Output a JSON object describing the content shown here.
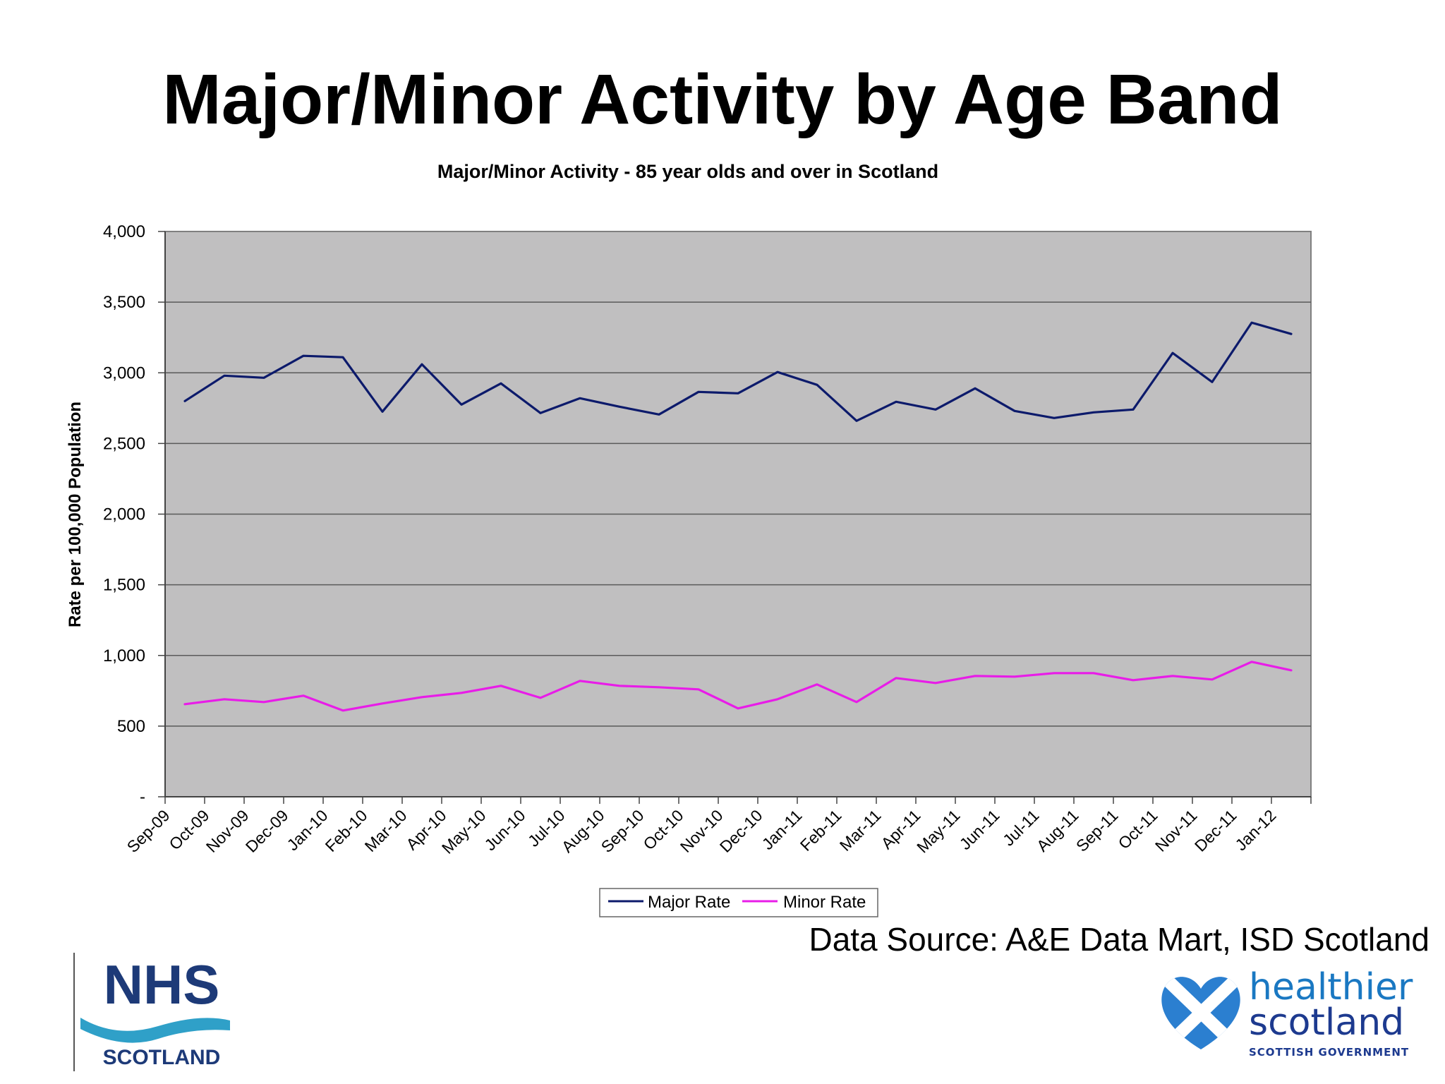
{
  "page": {
    "title": "Major/Minor Activity by Age Band",
    "data_source": "Data Source:  A&E Data Mart, ISD Scotland"
  },
  "logos": {
    "nhs": {
      "line1": "NHS",
      "line2": "SCOTLAND"
    },
    "healthier": {
      "line1": "healthier",
      "line2": "scotland",
      "line3": "SCOTTISH GOVERNMENT"
    }
  },
  "colors": {
    "plot_bg": "#c0bfc0",
    "major": "#0c1a6b",
    "minor": "#e81ce8",
    "grid": "#5a5a5a"
  },
  "chart_data": {
    "type": "line",
    "title": "Major/Minor Activity - 85 year olds and over in Scotland",
    "xlabel": "",
    "ylabel": "Rate per 100,000 Population",
    "ylim": [
      0,
      4000
    ],
    "yticks": [
      0,
      500,
      1000,
      1500,
      2000,
      2500,
      3000,
      3500,
      4000
    ],
    "ytick_labels": [
      "-",
      "500",
      "1,000",
      "1,500",
      "2,000",
      "2,500",
      "3,000",
      "3,500",
      "4,000"
    ],
    "grid": true,
    "legend_position": "bottom",
    "categories": [
      "Sep-09",
      "Oct-09",
      "Nov-09",
      "Dec-09",
      "Jan-10",
      "Feb-10",
      "Mar-10",
      "Apr-10",
      "May-10",
      "Jun-10",
      "Jul-10",
      "Aug-10",
      "Sep-10",
      "Oct-10",
      "Nov-10",
      "Dec-10",
      "Jan-11",
      "Feb-11",
      "Mar-11",
      "Apr-11",
      "May-11",
      "Jun-11",
      "Jul-11",
      "Aug-11",
      "Sep-11",
      "Oct-11",
      "Nov-11",
      "Dec-11",
      "Jan-12"
    ],
    "series": [
      {
        "name": "Major Rate",
        "values": [
          2800,
          2980,
          2965,
          3120,
          3110,
          2725,
          3060,
          2775,
          2925,
          2715,
          2820,
          2760,
          2705,
          2865,
          2855,
          3005,
          2915,
          2660,
          2795,
          2740,
          2890,
          2730,
          2680,
          2720,
          2740,
          3140,
          2935,
          3355,
          3275
        ]
      },
      {
        "name": "Minor Rate",
        "values": [
          655,
          690,
          670,
          715,
          610,
          660,
          705,
          735,
          785,
          700,
          820,
          785,
          775,
          760,
          625,
          690,
          795,
          670,
          840,
          805,
          855,
          850,
          875,
          875,
          825,
          855,
          830,
          955,
          895
        ]
      }
    ]
  }
}
